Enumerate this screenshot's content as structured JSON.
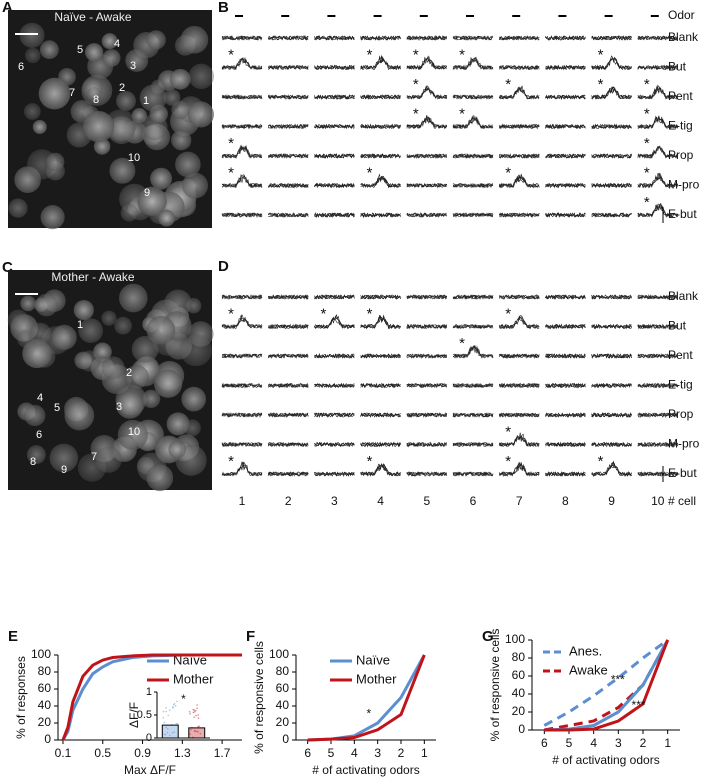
{
  "image_panels": [
    {
      "letter": "A",
      "title": "Naïve - Awake",
      "cells": [
        "1",
        "2",
        "3",
        "4",
        "5",
        "6",
        "7",
        "8",
        "9",
        "10"
      ]
    },
    {
      "letter": "C",
      "title": "Mother - Awake",
      "cells": [
        "1",
        "2",
        "3",
        "4",
        "5",
        "6",
        "7",
        "8",
        "9",
        "10"
      ]
    }
  ],
  "trace_panels": [
    {
      "letter": "B",
      "header": "Odor",
      "odors": [
        "Blank",
        "But",
        "Pent",
        "E-tig",
        "Prop",
        "M-pro",
        "E-but"
      ],
      "asterisk": "*",
      "responses": [
        [
          1,
          0
        ],
        [
          1,
          3
        ],
        [
          1,
          4
        ],
        [
          1,
          5
        ],
        [
          1,
          8
        ],
        [
          2,
          4
        ],
        [
          2,
          6
        ],
        [
          2,
          8
        ],
        [
          2,
          9
        ],
        [
          3,
          4
        ],
        [
          3,
          5
        ],
        [
          3,
          9
        ],
        [
          4,
          0
        ],
        [
          4,
          9
        ],
        [
          5,
          0
        ],
        [
          5,
          3
        ],
        [
          5,
          6
        ],
        [
          5,
          9
        ],
        [
          6,
          9
        ]
      ]
    },
    {
      "letter": "D",
      "odors": [
        "Blank",
        "But",
        "Pent",
        "E-tig",
        "Prop",
        "M-pro",
        "E-but"
      ],
      "asterisk": "*",
      "responses": [
        [
          1,
          0
        ],
        [
          1,
          2
        ],
        [
          1,
          3
        ],
        [
          1,
          6
        ],
        [
          2,
          5
        ],
        [
          5,
          6
        ],
        [
          6,
          0
        ],
        [
          6,
          3
        ],
        [
          6,
          6
        ],
        [
          6,
          8
        ]
      ],
      "cell_numbers": [
        "1",
        "2",
        "3",
        "4",
        "5",
        "6",
        "7",
        "8",
        "9",
        "10"
      ],
      "cell_axis_label": "# cell"
    }
  ],
  "chart_data": [
    {
      "letter": "E",
      "type": "line",
      "xlabel": "Max ΔF/F",
      "ylabel": "% of responses",
      "xlim": [
        0.05,
        1.9
      ],
      "xticks": [
        0.1,
        0.5,
        0.9,
        1.3,
        1.7
      ],
      "ylim": [
        0,
        100
      ],
      "yticks": [
        0,
        20,
        40,
        60,
        80,
        100
      ],
      "series": [
        {
          "name": "Naïve",
          "color": "#5b8fd0",
          "x": [
            0.1,
            0.15,
            0.2,
            0.3,
            0.4,
            0.5,
            0.6,
            0.8,
            1.0,
            1.3,
            1.8
          ],
          "values": [
            0,
            10,
            35,
            60,
            78,
            86,
            92,
            97,
            99,
            100,
            100
          ]
        },
        {
          "name": "Mother",
          "color": "#c0141b",
          "x": [
            0.1,
            0.15,
            0.2,
            0.3,
            0.4,
            0.5,
            0.6,
            0.8,
            1.0,
            1.9
          ],
          "values": [
            0,
            15,
            45,
            75,
            88,
            94,
            97,
            99,
            100,
            100
          ]
        }
      ],
      "inset": {
        "type": "bar",
        "ylabel": "ΔF/F",
        "ylim": [
          0,
          1
        ],
        "yticks": [
          0,
          0.5,
          1
        ],
        "values": [
          0.28,
          0.22
        ],
        "colors": [
          "#5b8fd0",
          "#c0141b"
        ],
        "annotation": "*"
      }
    },
    {
      "letter": "F",
      "type": "line",
      "xlabel": "# of activating odors",
      "ylabel": "% of responsive cells",
      "categories": [
        "6",
        "5",
        "4",
        "3",
        "2",
        "1"
      ],
      "ylim": [
        0,
        100
      ],
      "yticks": [
        0,
        20,
        40,
        60,
        80,
        100
      ],
      "series": [
        {
          "name": "Naïve",
          "color": "#5b8fd0",
          "values": [
            0,
            1,
            5,
            20,
            50,
            100
          ]
        },
        {
          "name": "Mother",
          "color": "#c0141b",
          "values": [
            0,
            1,
            3,
            12,
            30,
            100
          ]
        }
      ],
      "annotations": [
        "*"
      ]
    },
    {
      "letter": "G",
      "type": "line",
      "xlabel": "# of activating odors",
      "ylabel": "% of responsive cells",
      "categories": [
        "6",
        "5",
        "4",
        "3",
        "2",
        "1"
      ],
      "ylim": [
        0,
        100
      ],
      "yticks": [
        0,
        20,
        40,
        60,
        80,
        100
      ],
      "series": [
        {
          "name": "Anes.",
          "color": "#5b8fd0",
          "dashed": true,
          "values": [
            5,
            20,
            38,
            58,
            80,
            100
          ]
        },
        {
          "name": "Awake",
          "color": "#c0141b",
          "dashed": true,
          "values": [
            0,
            5,
            10,
            25,
            50,
            100
          ]
        },
        {
          "color": "#5b8fd0",
          "values": [
            0,
            1,
            5,
            20,
            50,
            100
          ]
        },
        {
          "color": "#c0141b",
          "values": [
            0,
            0,
            1,
            10,
            29,
            100
          ]
        }
      ],
      "annotations": [
        "***",
        "***"
      ]
    }
  ]
}
